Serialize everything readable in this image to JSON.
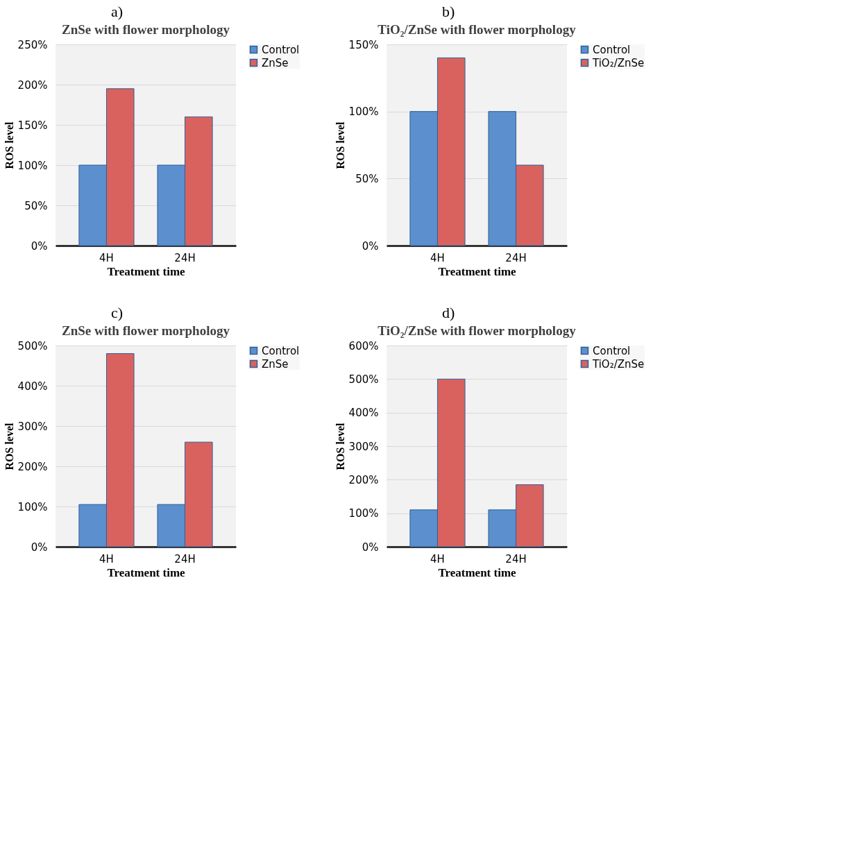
{
  "chart_data": [
    {
      "type": "bar",
      "annotations": [
        "a)"
      ],
      "title": "ZnSe with flower morphology",
      "xlabel": "Treatment time",
      "ylabel": "ROS level",
      "categories": [
        "4H",
        "24H"
      ],
      "series": [
        {
          "name": "Control",
          "color": "#5b8fce",
          "values": [
            100,
            100
          ]
        },
        {
          "name": "ZnSe",
          "color": "#d9625f",
          "values": [
            195,
            160
          ]
        }
      ],
      "ylim": [
        0,
        250
      ],
      "yticks": [
        {
          "value": 0,
          "label": "0%"
        },
        {
          "value": 50,
          "label": "50%"
        },
        {
          "value": 100,
          "label": "100%"
        },
        {
          "value": 150,
          "label": "150%"
        },
        {
          "value": 200,
          "label": "200%"
        },
        {
          "value": 250,
          "label": "250%"
        }
      ],
      "grid": "y",
      "legend": "right"
    },
    {
      "type": "bar",
      "annotations": [
        "b)"
      ],
      "title": "TiO₂/ZnSe with flower morphology",
      "xlabel": "Treatment time",
      "ylabel": "ROS level",
      "categories": [
        "4H",
        "24H"
      ],
      "series": [
        {
          "name": "Control",
          "color": "#5b8fce",
          "values": [
            100,
            100
          ]
        },
        {
          "name": "TiO₂/ZnSe",
          "color": "#d9625f",
          "values": [
            140,
            60
          ]
        }
      ],
      "ylim": [
        0,
        150
      ],
      "yticks": [
        {
          "value": 0,
          "label": "0%"
        },
        {
          "value": 50,
          "label": "50%"
        },
        {
          "value": 100,
          "label": "100%"
        },
        {
          "value": 150,
          "label": "150%"
        }
      ],
      "grid": "y",
      "legend": "right"
    },
    {
      "type": "bar",
      "annotations": [
        "c)"
      ],
      "title": "ZnSe with flower morphology",
      "xlabel": "Treatment time",
      "ylabel": "ROS level",
      "categories": [
        "4H",
        "24H"
      ],
      "series": [
        {
          "name": "Control",
          "color": "#5b8fce",
          "values": [
            105,
            105
          ]
        },
        {
          "name": "ZnSe",
          "color": "#d9625f",
          "values": [
            480,
            260
          ]
        }
      ],
      "ylim": [
        0,
        500
      ],
      "yticks": [
        {
          "value": 0,
          "label": "0%"
        },
        {
          "value": 100,
          "label": "100%"
        },
        {
          "value": 200,
          "label": "200%"
        },
        {
          "value": 300,
          "label": "300%"
        },
        {
          "value": 400,
          "label": "400%"
        },
        {
          "value": 500,
          "label": "500%"
        }
      ],
      "grid": "y",
      "legend": "right"
    },
    {
      "type": "bar",
      "annotations": [
        "d)"
      ],
      "title": "TiO₂/ZnSe with flower morphology",
      "xlabel": "Treatment time",
      "ylabel": "ROS level",
      "categories": [
        "4H",
        "24H"
      ],
      "series": [
        {
          "name": "Control",
          "color": "#5b8fce",
          "values": [
            110,
            110
          ]
        },
        {
          "name": "TiO₂/ZnSe",
          "color": "#d9625f",
          "values": [
            500,
            185
          ]
        }
      ],
      "ylim": [
        0,
        600
      ],
      "yticks": [
        {
          "value": 0,
          "label": "0%"
        },
        {
          "value": 100,
          "label": "100%"
        },
        {
          "value": 200,
          "label": "200%"
        },
        {
          "value": 300,
          "label": "300%"
        },
        {
          "value": 400,
          "label": "400%"
        },
        {
          "value": 500,
          "label": "500%"
        },
        {
          "value": 600,
          "label": "600%"
        }
      ],
      "grid": "y",
      "legend": "right"
    }
  ]
}
